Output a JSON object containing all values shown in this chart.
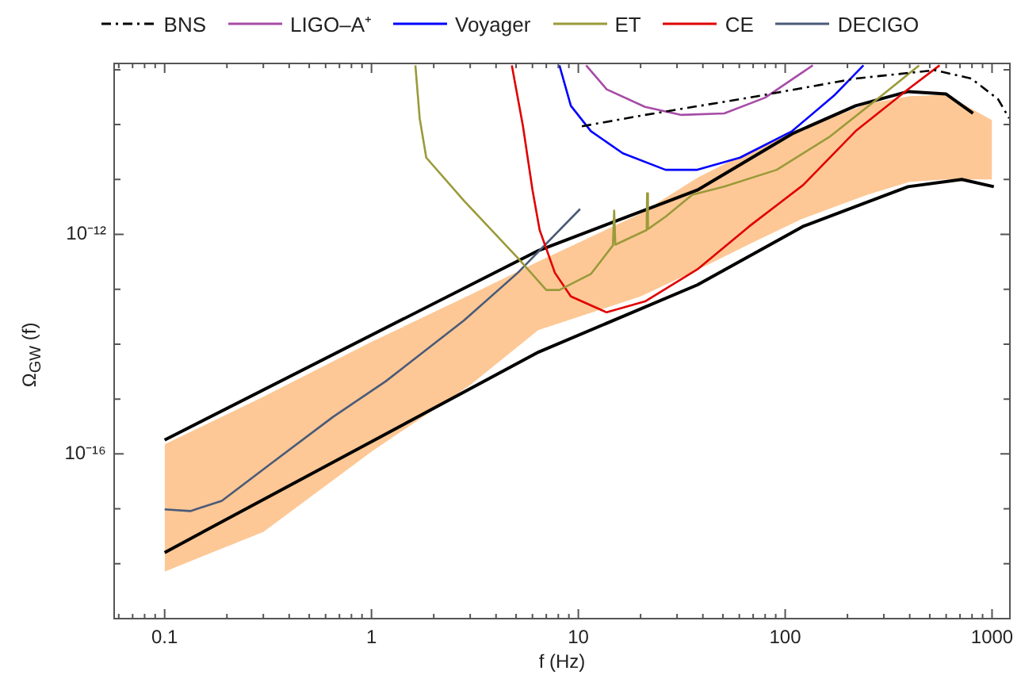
{
  "chart_data": {
    "type": "line",
    "xlabel": "f (Hz)",
    "ylabel": "Ω$_{GW}$ (f)",
    "log": "xy",
    "legend": "top",
    "xlim": [
      0.057,
      1220
    ],
    "ylim": [
      1e-19,
      1.3e-09
    ],
    "xticks": [
      {
        "value": 0.06,
        "label": null
      },
      {
        "value": 0.07,
        "label": null
      },
      {
        "value": 0.08,
        "label": null
      },
      {
        "value": 0.09,
        "label": null
      },
      {
        "value": 0.1,
        "label": "0.1"
      },
      {
        "value": 0.2,
        "label": null
      },
      {
        "value": 0.3,
        "label": null
      },
      {
        "value": 0.4,
        "label": null
      },
      {
        "value": 0.5,
        "label": null
      },
      {
        "value": 0.6,
        "label": null
      },
      {
        "value": 0.7,
        "label": null
      },
      {
        "value": 0.8,
        "label": null
      },
      {
        "value": 0.9,
        "label": null
      },
      {
        "value": 1,
        "label": "1"
      },
      {
        "value": 2,
        "label": null
      },
      {
        "value": 3,
        "label": null
      },
      {
        "value": 4,
        "label": null
      },
      {
        "value": 5,
        "label": null
      },
      {
        "value": 6,
        "label": null
      },
      {
        "value": 7,
        "label": null
      },
      {
        "value": 8,
        "label": null
      },
      {
        "value": 9,
        "label": null
      },
      {
        "value": 10,
        "label": "10"
      },
      {
        "value": 20,
        "label": null
      },
      {
        "value": 30,
        "label": null
      },
      {
        "value": 40,
        "label": null
      },
      {
        "value": 50,
        "label": null
      },
      {
        "value": 60,
        "label": null
      },
      {
        "value": 70,
        "label": null
      },
      {
        "value": 80,
        "label": null
      },
      {
        "value": 90,
        "label": null
      },
      {
        "value": 100,
        "label": "100"
      },
      {
        "value": 200,
        "label": null
      },
      {
        "value": 300,
        "label": null
      },
      {
        "value": 400,
        "label": null
      },
      {
        "value": 500,
        "label": null
      },
      {
        "value": 600,
        "label": null
      },
      {
        "value": 700,
        "label": null
      },
      {
        "value": 800,
        "label": null
      },
      {
        "value": 900,
        "label": null
      },
      {
        "value": 1000,
        "label": "1000"
      }
    ],
    "yticks": [
      {
        "value": 1e-19,
        "label": null
      },
      {
        "value": 1e-18,
        "label": null
      },
      {
        "value": 1e-17,
        "label": null
      },
      {
        "value": 1e-16,
        "label": "10⁻¹⁶"
      },
      {
        "value": 1e-15,
        "label": null
      },
      {
        "value": 1e-14,
        "label": null
      },
      {
        "value": 1e-13,
        "label": null
      },
      {
        "value": 1e-12,
        "label": "10⁻¹²"
      },
      {
        "value": 1e-11,
        "label": null
      },
      {
        "value": 1e-10,
        "label": null
      },
      {
        "value": 1e-09,
        "label": null
      }
    ],
    "series": [
      {
        "name": "BNS",
        "type": "line",
        "color": "#000000",
        "line_style": "dashdot",
        "x": [
          10.4,
          21,
          67,
          219,
          530,
          794,
          1070,
          1210
        ],
        "values": [
          9.3e-11,
          1.5e-10,
          3.1e-10,
          6.9e-10,
          9.8e-10,
          6.9e-10,
          2.9e-10,
          1.3e-10
        ]
      },
      {
        "name": "LIGO–A⁺",
        "type": "line",
        "color": "#a64ca6",
        "x": [
          10.9,
          13.7,
          21,
          31.5,
          50.7,
          80,
          136
        ],
        "values": [
          1.2e-09,
          4.4e-10,
          2.1e-10,
          1.5e-10,
          1.6e-10,
          3.1e-10,
          1.2e-09
        ]
      },
      {
        "name": "Voyager",
        "type": "line",
        "color": "#0000ff",
        "x": [
          8.1,
          9.2,
          11.5,
          16.4,
          26.4,
          37.6,
          60.5,
          108,
          174,
          239
        ],
        "values": [
          1.2e-09,
          2.2e-10,
          7.6e-11,
          3e-11,
          1.5e-11,
          1.5e-11,
          2.5e-11,
          7.6e-11,
          3.5e-10,
          1.2e-09
        ]
      },
      {
        "name": "ET",
        "type": "line",
        "color": "#9a9a3a",
        "x": [
          1.63,
          1.71,
          1.84,
          2.8,
          5.1,
          7.0,
          8.1,
          11.5,
          14.7,
          14.9,
          15.1,
          21.4,
          21.5,
          21.7,
          26.4,
          35.6,
          50.7,
          91,
          163,
          296,
          444
        ],
        "values": [
          1.2e-09,
          1.3e-10,
          2.5e-11,
          4.1e-12,
          3.7e-13,
          9.7e-14,
          9.7e-14,
          1.9e-13,
          6.3e-13,
          2.7e-12,
          6.5e-13,
          1.2e-12,
          5.6e-12,
          1.25e-12,
          2.1e-12,
          5.3e-12,
          7.4e-12,
          1.5e-11,
          5.9e-11,
          3.5e-10,
          1.2e-09
        ]
      },
      {
        "name": "CE",
        "type": "line",
        "color": "#e00000",
        "x": [
          4.77,
          5.4,
          6.0,
          6.5,
          7.7,
          9.2,
          13.7,
          21,
          37.6,
          67,
          122,
          219,
          393,
          558
        ],
        "values": [
          1.2e-09,
          9.3e-11,
          6.5e-12,
          1.2e-12,
          2e-13,
          7.4e-14,
          3.8e-14,
          6e-14,
          2.3e-13,
          1.4e-12,
          7.9e-12,
          7.6e-11,
          4.4e-10,
          1.2e-09
        ]
      },
      {
        "name": "DECIGO",
        "type": "line",
        "color": "#4a5a78",
        "x": [
          0.1,
          0.133,
          0.189,
          0.32,
          0.65,
          1.17,
          2.8,
          5.1,
          10.2
        ],
        "values": [
          9.8e-18,
          9.1e-18,
          1.4e-17,
          6.3e-17,
          4.7e-16,
          2.1e-15,
          2.7e-14,
          2e-13,
          2.9e-12
        ]
      },
      {
        "type": "line",
        "color": "#000000",
        "x": [
          0.1,
          6.43,
          37.6,
          108,
          219,
          393,
          600,
          809
        ],
        "values": [
          1.8e-16,
          5.1e-13,
          6.4e-12,
          6.8e-11,
          2.2e-10,
          4e-10,
          3.6e-10,
          1.6e-10
        ]
      },
      {
        "type": "line",
        "color": "#000000",
        "x": [
          0.1,
          6.43,
          37.6,
          122,
          393,
          714,
          1020
        ],
        "values": [
          1.6e-18,
          7.2e-15,
          1.2e-13,
          1.4e-12,
          7.4e-12,
          1e-11,
          7.4e-12
        ]
      },
      {
        "type": "line",
        "color": "#fdc896",
        "x": [
          0.1,
          0.3,
          1,
          3,
          6.4,
          20,
          38,
          70,
          120,
          250,
          400,
          600,
          1000
        ],
        "values": [
          null,
          null,
          null,
          null,
          null,
          null,
          null,
          null,
          null,
          null,
          null,
          null,
          null
        ],
        "upper": [
          1.5e-16,
          1.1e-15,
          1.1e-14,
          7.9e-14,
          3.2e-13,
          2.4e-12,
          1.1e-11,
          3.5e-11,
          8.1e-11,
          2.4e-10,
          3.3e-10,
          3.5e-10,
          1.2e-10
        ],
        "lower": [
          7.2e-19,
          3.8e-18,
          1.1e-16,
          1.8e-15,
          1.8e-14,
          7.4e-14,
          2.3e-13,
          7.2e-13,
          1.9e-12,
          5.3e-12,
          9.1e-12,
          1e-11,
          1e-11
        ]
      }
    ]
  }
}
